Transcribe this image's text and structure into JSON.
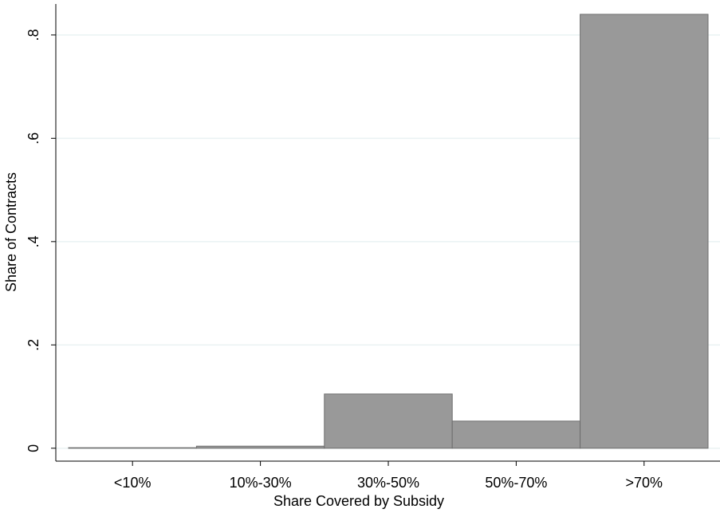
{
  "chart_data": {
    "type": "bar",
    "x_label": "Share Covered by Subsidy",
    "y_label": "Share of Contracts",
    "categories": [
      "<10%",
      "10%-30%",
      "30%-50%",
      "50%-70%",
      ">70%"
    ],
    "values": [
      0.001,
      0.004,
      0.105,
      0.0525,
      0.84
    ],
    "color": "#999999",
    "edge_color": "#6e6e6e",
    "ylim": [
      -0.025,
      0.86
    ],
    "yticks": [
      0,
      {
        "value": 0.2,
        "label": ".2"
      },
      {
        "value": 0.4,
        "label": ".4"
      },
      {
        "value": 0.6,
        "label": ".6"
      },
      {
        "value": 0.8,
        "label": ".8"
      }
    ],
    "grid": true
  }
}
